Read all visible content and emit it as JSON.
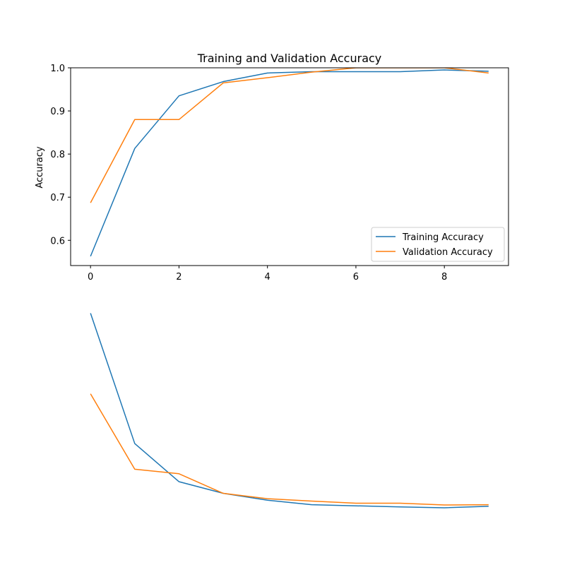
{
  "chart_data": [
    {
      "type": "line",
      "title": "Training and Validation Accuracy",
      "xlabel": "",
      "ylabel": "Accuracy",
      "xlim": [
        -0.45,
        9.45
      ],
      "ylim": [
        0.5415,
        1.0
      ],
      "x": [
        0,
        1,
        2,
        3,
        4,
        5,
        6,
        7,
        8,
        9
      ],
      "xticks": [
        "0",
        "2",
        "4",
        "6",
        "8"
      ],
      "yticks": [
        "0.6",
        "0.7",
        "0.8",
        "0.9",
        "1.0"
      ],
      "grid": false,
      "legend_position": "lower-right",
      "series": [
        {
          "name": "Training Accuracy",
          "color": "#1f77b4",
          "values": [
            0.563,
            0.813,
            0.935,
            0.968,
            0.988,
            0.991,
            0.991,
            0.991,
            0.995,
            0.992
          ]
        },
        {
          "name": "Validation Accuracy",
          "color": "#ff7f0e",
          "values": [
            0.687,
            0.88,
            0.88,
            0.965,
            0.977,
            0.99,
            1.0,
            1.0,
            1.0,
            0.988
          ]
        }
      ]
    },
    {
      "type": "line",
      "title": "",
      "xlabel": "",
      "ylabel": "",
      "axis_visible": false,
      "xlim": [
        -0.45,
        9.45
      ],
      "ylim": [
        0,
        1
      ],
      "x": [
        0,
        1,
        2,
        3,
        4,
        5,
        6,
        7,
        8,
        9
      ],
      "series": [
        {
          "color": "#1f77b4",
          "values": [
            0.913,
            0.308,
            0.131,
            0.077,
            0.045,
            0.024,
            0.019,
            0.014,
            0.01,
            0.017
          ]
        },
        {
          "color": "#ff7f0e",
          "values": [
            0.539,
            0.189,
            0.168,
            0.077,
            0.052,
            0.041,
            0.031,
            0.031,
            0.023,
            0.024
          ]
        }
      ]
    }
  ]
}
